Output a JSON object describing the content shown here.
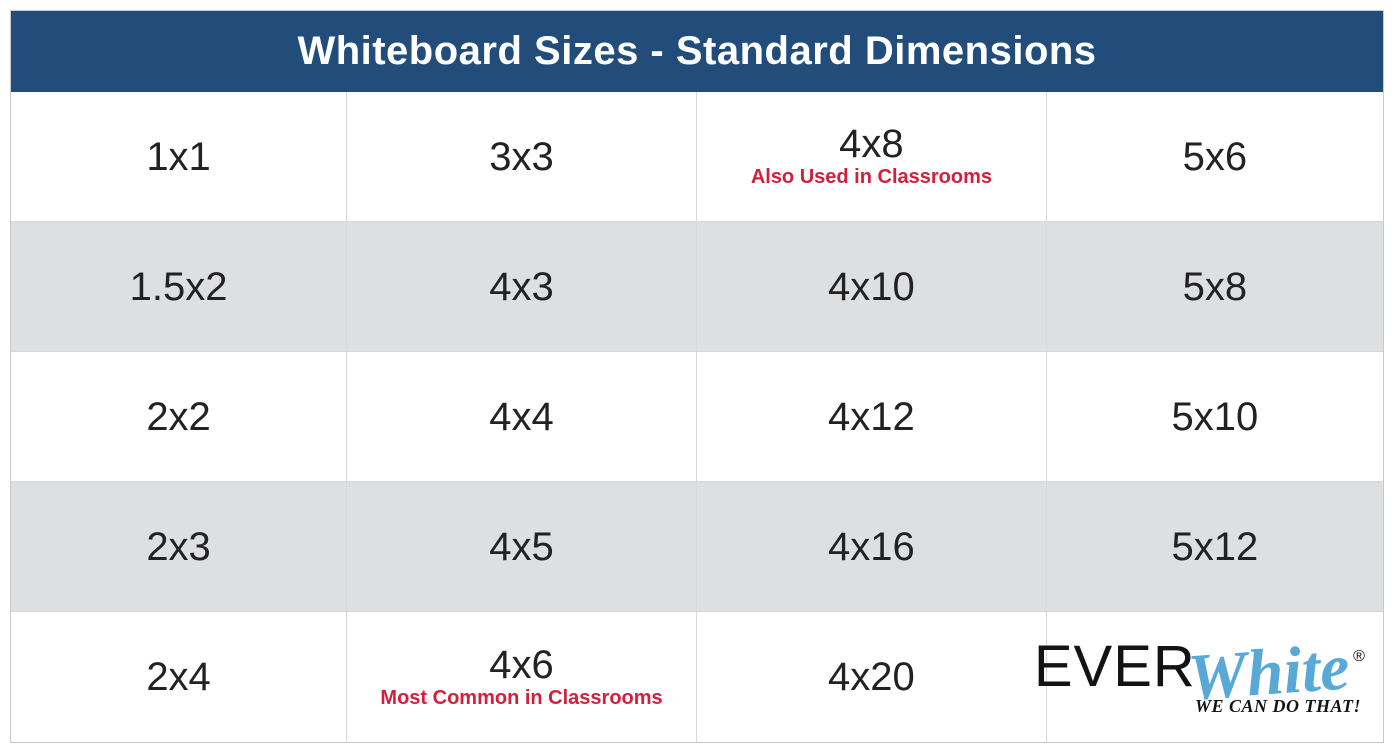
{
  "title": "Whiteboard Sizes - Standard Dimensions",
  "colors": {
    "header_bg": "#224d7b",
    "header_text": "#ffffff",
    "row_alt_bg": "#dedfe1",
    "cell_text": "#222222",
    "note_text": "#d31f3c",
    "border": "#d9d9d9",
    "logo_text": "#131313",
    "logo_accent": "#59a9d8"
  },
  "typography": {
    "header_fontsize": 40,
    "cell_fontsize": 40,
    "note_fontsize": 20,
    "tagline_fontsize": 18
  },
  "table": {
    "columns": 4,
    "rows": [
      [
        {
          "size": "1x1",
          "note": ""
        },
        {
          "size": "3x3",
          "note": ""
        },
        {
          "size": "4x8",
          "note": "Also Used in Classrooms"
        },
        {
          "size": "5x6",
          "note": ""
        }
      ],
      [
        {
          "size": "1.5x2",
          "note": ""
        },
        {
          "size": "4x3",
          "note": ""
        },
        {
          "size": "4x10",
          "note": ""
        },
        {
          "size": "5x8",
          "note": ""
        }
      ],
      [
        {
          "size": "2x2",
          "note": ""
        },
        {
          "size": "4x4",
          "note": ""
        },
        {
          "size": "4x12",
          "note": ""
        },
        {
          "size": "5x10",
          "note": ""
        }
      ],
      [
        {
          "size": "2x3",
          "note": ""
        },
        {
          "size": "4x5",
          "note": ""
        },
        {
          "size": "4x16",
          "note": ""
        },
        {
          "size": "5x12",
          "note": ""
        }
      ],
      [
        {
          "size": "2x4",
          "note": ""
        },
        {
          "size": "4x6",
          "note": "Most Common in Classrooms"
        },
        {
          "size": "4x20",
          "note": ""
        },
        {
          "size": "",
          "note": "",
          "logo": true
        }
      ]
    ]
  },
  "logo": {
    "part1": "EVER",
    "part2": "White",
    "registered": "®",
    "tagline": "WE CAN DO THAT!"
  }
}
